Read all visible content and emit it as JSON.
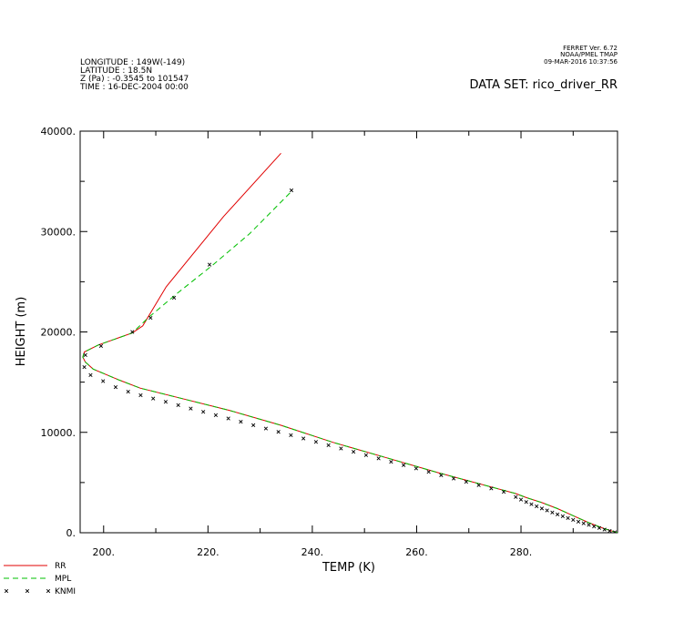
{
  "header": {
    "left_lines": [
      "LONGITUDE : 149W(-149)",
      "LATITUDE : 18.5N",
      "Z (Pa) : -0.3545 to 101547",
      "TIME : 16-DEC-2004 00:00"
    ],
    "right_lines": [
      "FERRET Ver. 6.72",
      "NOAA/PMEL TMAP",
      "09-MAR-2016 10:37:56"
    ],
    "dataset": "DATA SET: rico_driver_RR"
  },
  "chart_data": {
    "type": "line",
    "xlabel": "TEMP (K)",
    "ylabel": "HEIGHT (m)",
    "xlim": [
      195.5,
      298.5
    ],
    "ylim": [
      0,
      40000
    ],
    "x_ticks": [
      200,
      220,
      240,
      260,
      280
    ],
    "x_tick_labels": [
      "200.",
      "220.",
      "240.",
      "260.",
      "280."
    ],
    "y_ticks": [
      0,
      10000,
      20000,
      30000,
      40000
    ],
    "y_tick_labels": [
      "0.",
      "10000.",
      "20000.",
      "30000.",
      "40000."
    ],
    "x_minor_step": 10,
    "y_minor_step": 5000,
    "grid": false,
    "legend_position": "bottom-left",
    "series": [
      {
        "name": "RR",
        "style": "solid",
        "color": "#e00000",
        "x": [
          298.5,
          296,
          293,
          290,
          287,
          284,
          281,
          279,
          274,
          264,
          254,
          244,
          234,
          224,
          214,
          207,
          203,
          198,
          196.5,
          196,
          196.3,
          199,
          205.5,
          207.5,
          212,
          223,
          234
        ],
        "y": [
          0,
          400,
          1000,
          1700,
          2400,
          3000,
          3500,
          3900,
          4600,
          6000,
          7500,
          9000,
          10700,
          12200,
          13500,
          14400,
          15200,
          16300,
          17000,
          17500,
          18000,
          18700,
          19900,
          20600,
          24500,
          31500,
          37800
        ]
      },
      {
        "name": "MPL",
        "style": "dashed",
        "color": "#00c000",
        "x": [
          298.5,
          296,
          293,
          290,
          287,
          284,
          281,
          279,
          274,
          264,
          254,
          244,
          234,
          224,
          214,
          207,
          203,
          198,
          196.5,
          196,
          196.3,
          199,
          205.5,
          208.5,
          214,
          221,
          228,
          236
        ],
        "y": [
          0,
          400,
          1000,
          1700,
          2400,
          3000,
          3500,
          3900,
          4600,
          6000,
          7500,
          9000,
          10700,
          12200,
          13500,
          14400,
          15200,
          16300,
          17000,
          17500,
          18000,
          18700,
          19900,
          21400,
          23800,
          26700,
          29800,
          34000
        ]
      },
      {
        "name": "KNMI",
        "style": "markers",
        "color": "#000000",
        "x": [
          298,
          297,
          296,
          295,
          294,
          293,
          292,
          291,
          290,
          289,
          288,
          287,
          286,
          285,
          284,
          283,
          282,
          281,
          280,
          279,
          276.7,
          274.3,
          271.9,
          269.5,
          267.1,
          264.7,
          262.3,
          259.9,
          257.5,
          255.1,
          252.7,
          250.3,
          247.9,
          245.5,
          243.1,
          240.7,
          238.3,
          235.9,
          233.5,
          231.1,
          228.7,
          226.3,
          223.9,
          221.5,
          219.1,
          216.7,
          214.3,
          211.9,
          209.5,
          207.1,
          204.7,
          202.3,
          199.9,
          197.5,
          196.3,
          196.5,
          199.5,
          205.5,
          209,
          213.5,
          220.3,
          236
        ],
        "y": [
          50,
          180,
          320,
          470,
          620,
          780,
          940,
          1100,
          1280,
          1460,
          1640,
          1830,
          2020,
          2220,
          2420,
          2630,
          2840,
          3060,
          3300,
          3560,
          4070,
          4410,
          4740,
          5070,
          5400,
          5730,
          6060,
          6400,
          6730,
          7060,
          7400,
          7730,
          8060,
          8390,
          8720,
          9050,
          9390,
          9720,
          10050,
          10380,
          10710,
          11050,
          11380,
          11710,
          12040,
          12370,
          12710,
          13040,
          13370,
          13700,
          14050,
          14500,
          15100,
          15700,
          16500,
          17700,
          18600,
          20000,
          21400,
          23400,
          26700,
          34100
        ]
      }
    ]
  }
}
